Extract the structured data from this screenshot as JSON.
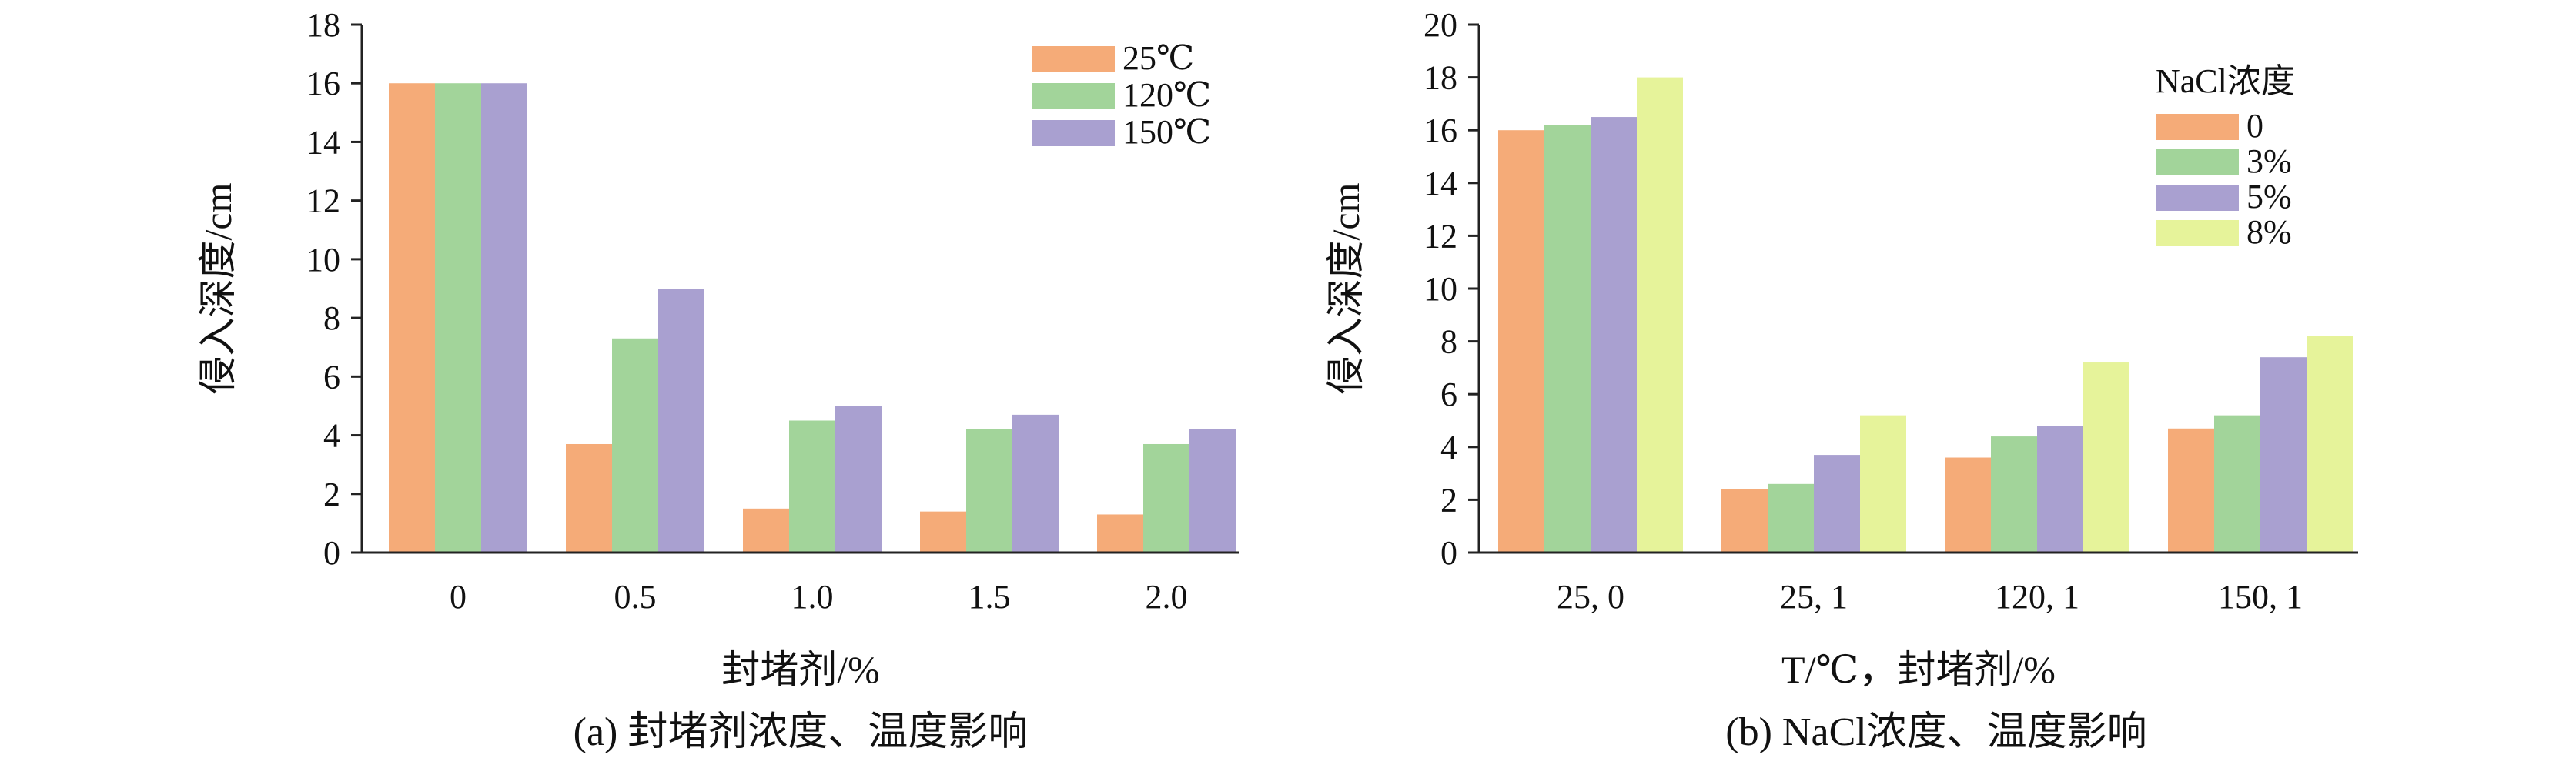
{
  "colors": {
    "orange": "#f5ab78",
    "green": "#a2d49a",
    "purple": "#a9a0d0",
    "yellow": "#e6f39a",
    "axis": "#222222"
  },
  "chart_data": [
    {
      "type": "bar",
      "caption": "(a) 封堵剂浓度、温度影响",
      "xlabel": "封堵剂/%",
      "ylabel": "侵入深度/cm",
      "ylim": [
        0,
        18
      ],
      "yticks": [
        "0",
        "2",
        "4",
        "6",
        "8",
        "10",
        "12",
        "14",
        "16",
        "18"
      ],
      "categories": [
        "0",
        "0.5",
        "1.0",
        "1.5",
        "2.0"
      ],
      "legend_title": "",
      "legend_position": "top-right",
      "series": [
        {
          "name": "25℃",
          "color": "#f5ab78",
          "values": [
            16.0,
            3.7,
            1.5,
            1.4,
            1.3
          ]
        },
        {
          "name": "120℃",
          "color": "#a2d49a",
          "values": [
            16.0,
            7.3,
            4.5,
            4.2,
            3.7
          ]
        },
        {
          "name": "150℃",
          "color": "#a9a0d0",
          "values": [
            16.0,
            9.0,
            5.0,
            4.7,
            4.2
          ]
        }
      ]
    },
    {
      "type": "bar",
      "caption": "(b) NaCl浓度、温度影响",
      "xlabel": "T/℃，封堵剂/%",
      "ylabel": "侵入深度/cm",
      "ylim": [
        0,
        20
      ],
      "yticks": [
        "0",
        "2",
        "4",
        "6",
        "8",
        "10",
        "12",
        "14",
        "16",
        "18",
        "20"
      ],
      "categories": [
        "25, 0",
        "25, 1",
        "120, 1",
        "150, 1"
      ],
      "legend_title": "NaCl浓度",
      "legend_position": "top-right",
      "series": [
        {
          "name": "0",
          "color": "#f5ab78",
          "values": [
            16.0,
            2.4,
            3.6,
            4.7
          ]
        },
        {
          "name": "3%",
          "color": "#a2d49a",
          "values": [
            16.2,
            2.6,
            4.4,
            5.2
          ]
        },
        {
          "name": "5%",
          "color": "#a9a0d0",
          "values": [
            16.5,
            3.7,
            4.8,
            7.4
          ]
        },
        {
          "name": "8%",
          "color": "#e6f39a",
          "values": [
            18.0,
            5.2,
            7.2,
            8.2
          ]
        }
      ]
    }
  ]
}
